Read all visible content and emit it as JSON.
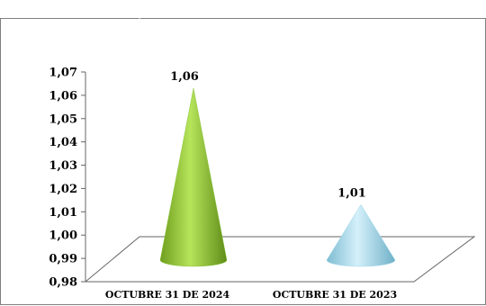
{
  "chart_data": {
    "type": "bar",
    "shape": "cone",
    "categories": [
      "OCTUBRE 31 DE 2024",
      "OCTUBRE 31 DE 2023"
    ],
    "values": [
      1.06,
      1.01
    ],
    "data_labels": [
      "1,06",
      "1,01"
    ],
    "ylim": [
      0.98,
      1.07
    ],
    "yticks": [
      "0,98",
      "0,99",
      "1,00",
      "1,01",
      "1,02",
      "1,03",
      "1,04",
      "1,05",
      "1,06",
      "1,07"
    ],
    "grid": false,
    "legend": "none",
    "colors": {
      "series_1": "#8cc63f",
      "series_2": "#9ed8ea",
      "floor_line": "#666666",
      "border": "#7f7f7f"
    }
  }
}
